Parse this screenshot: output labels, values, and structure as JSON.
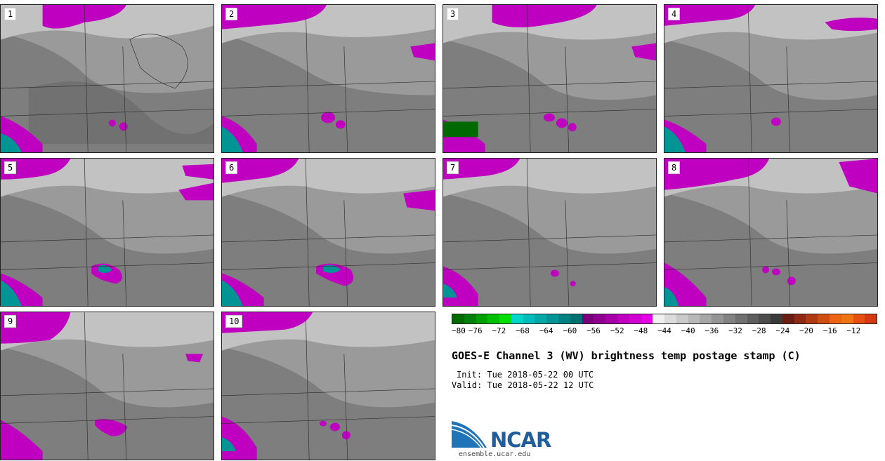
{
  "panels": [
    {
      "label": "1"
    },
    {
      "label": "2"
    },
    {
      "label": "3"
    },
    {
      "label": "4"
    },
    {
      "label": "5"
    },
    {
      "label": "6"
    },
    {
      "label": "7"
    },
    {
      "label": "8"
    },
    {
      "label": "9"
    },
    {
      "label": "10"
    }
  ],
  "colorbar": {
    "ticks": [
      "−80",
      "−76",
      "−72",
      "−68",
      "−64",
      "−60",
      "−56",
      "−52",
      "−48",
      "−44",
      "−40",
      "−36",
      "−32",
      "−28",
      "−24",
      "−20",
      "−16",
      "−12"
    ],
    "colors": [
      "#006a00",
      "#00820a",
      "#00a000",
      "#00c000",
      "#00e000",
      "#00d6c8",
      "#00bcbc",
      "#00a8a8",
      "#009494",
      "#008282",
      "#007070",
      "#7a007a",
      "#900090",
      "#a800a8",
      "#c000c0",
      "#d200d2",
      "#e600e6",
      "#f0f0f0",
      "#dcdcdc",
      "#cacaca",
      "#b8b8b8",
      "#a6a6a6",
      "#949494",
      "#828282",
      "#707070",
      "#5e5e5e",
      "#4c4c4c",
      "#3a3a3a",
      "#6a1e12",
      "#8e2a14",
      "#b03a14",
      "#d04e12",
      "#ec6414",
      "#f07414",
      "#e84e12",
      "#d43a10"
    ]
  },
  "title": "GOES-E Channel 3 (WV) brightness temp postage stamp (C)",
  "init": "Init: Tue 2018-05-22 00 UTC",
  "valid": "Valid: Tue 2018-05-22 12 UTC",
  "logo": {
    "name": "NCAR",
    "url": "ensemble.ucar.edu"
  }
}
